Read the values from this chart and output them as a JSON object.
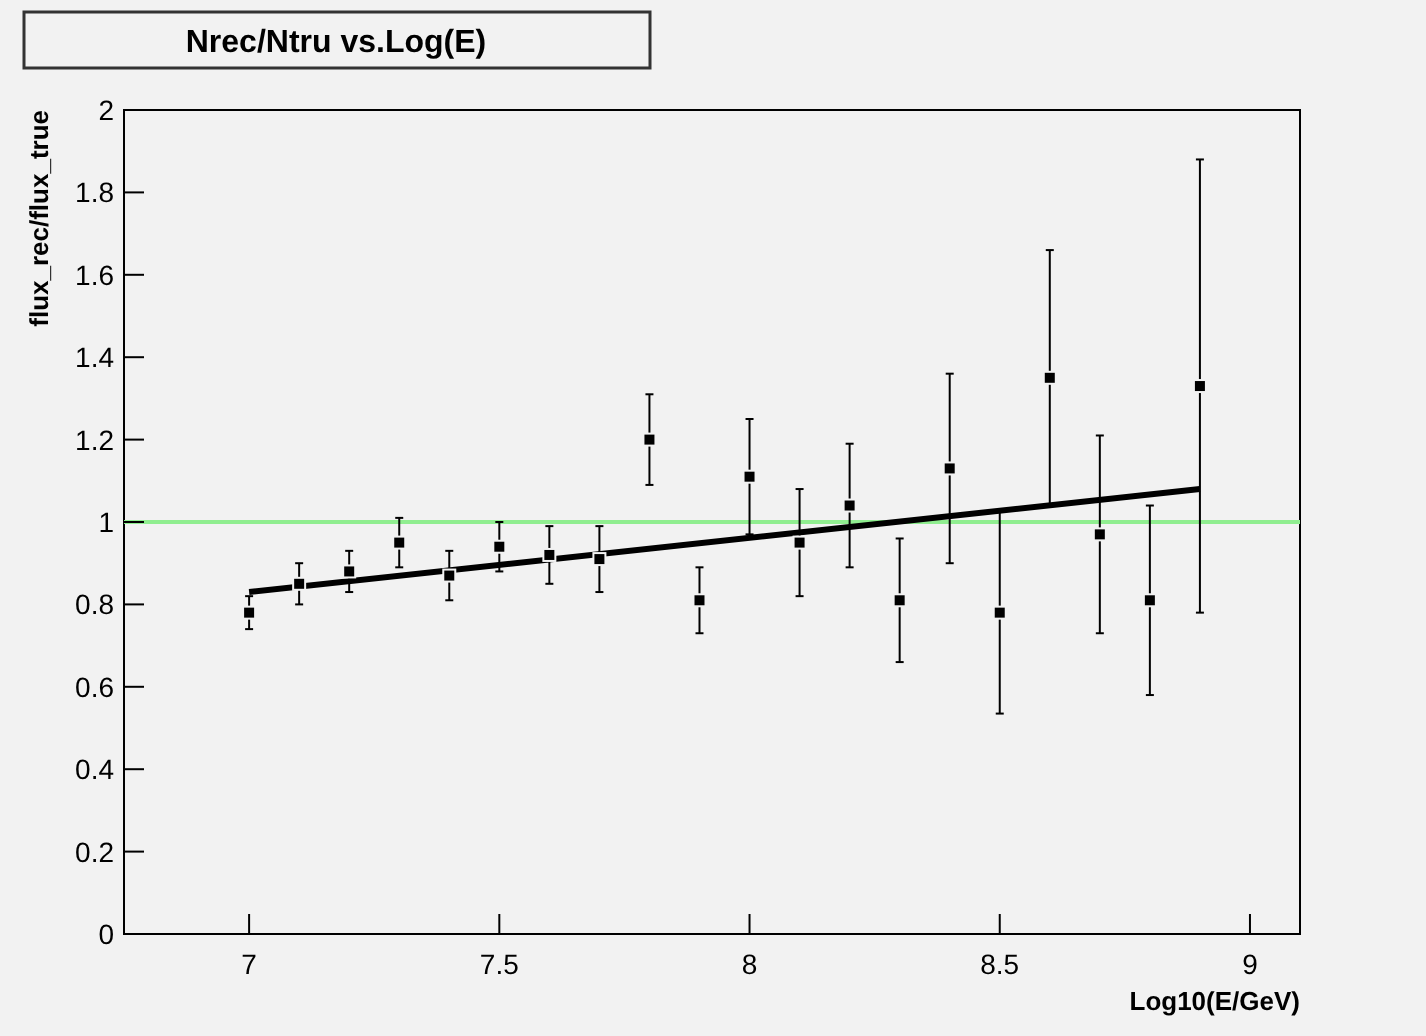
{
  "chart_data": {
    "type": "scatter",
    "title": "Nrec/Ntru vs.Log(E)",
    "xlabel": "Log10(E/GeV)",
    "ylabel": "flux_rec/flux_true",
    "xlim": [
      6.75,
      9.1
    ],
    "xticks": [
      7,
      7.5,
      8,
      8.5,
      9
    ],
    "ylim": [
      0,
      2
    ],
    "yticks": [
      0,
      0.2,
      0.4,
      0.6,
      0.8,
      1,
      1.2,
      1.4,
      1.6,
      1.8,
      2
    ],
    "grid": false,
    "series": [
      {
        "type": "line",
        "color": "#000000",
        "line_style": "solid",
        "marker": "none",
        "x": [
          7.0,
          8.9
        ],
        "values": [
          0.83,
          1.08
        ]
      },
      {
        "color": "#000000",
        "marker": "square",
        "x": [
          7.0,
          7.1,
          7.2,
          7.3,
          7.4,
          7.5,
          7.6,
          7.7,
          7.8,
          7.9,
          8.0,
          8.1,
          8.2,
          8.3,
          8.4,
          8.5,
          8.6,
          8.7,
          8.8,
          8.9
        ],
        "values": [
          0.78,
          0.85,
          0.88,
          0.95,
          0.87,
          0.94,
          0.92,
          0.91,
          1.2,
          0.81,
          1.11,
          0.95,
          1.04,
          0.81,
          1.13,
          0.78,
          1.35,
          0.97,
          0.81,
          1.33
        ],
        "errors": [
          0.04,
          0.05,
          0.05,
          0.06,
          0.06,
          0.06,
          0.07,
          0.08,
          0.11,
          0.08,
          0.14,
          0.13,
          0.15,
          0.15,
          0.23,
          0.245,
          0.31,
          0.24,
          0.23,
          0.55
        ]
      }
    ],
    "ref_lines": [
      {
        "axis": "y",
        "value": 1,
        "color": "#90ee90"
      }
    ]
  }
}
